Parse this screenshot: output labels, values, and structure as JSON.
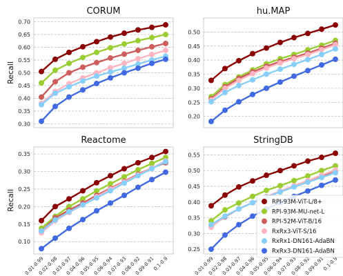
{
  "figure": {
    "xlabels": [
      "0.01-0.99",
      "0.02-0.98",
      "0.03-0.97",
      "0.04-0.96",
      "0.05-0.95",
      "0.06-0.94",
      "0.07-0.93",
      "0.08-0.92",
      "0.09-0.91",
      "0.1-0.9"
    ],
    "ylabel": "Recall"
  },
  "legend": {
    "placement": "bottom-right of StringDB panel",
    "entries": [
      {
        "name": "RPI-93M-ViT-L/8+",
        "color": "#8b0000"
      },
      {
        "name": "RPI-93M-MU-net-L",
        "color": "#9acd32"
      },
      {
        "name": "RPI-52M-ViT-B/16",
        "color": "#cd5c5c"
      },
      {
        "name": "RxRx3-ViT-S/16",
        "color": "#ffb6c1"
      },
      {
        "name": "RxRx1-DN161-AdaBN",
        "color": "#87cefa"
      },
      {
        "name": "RxRx3-DN161-AdaBN",
        "color": "#4169e1"
      }
    ]
  },
  "chart_data": [
    {
      "type": "line",
      "title": "CORUM",
      "xlabel": "",
      "ylabel": "Recall",
      "ylim": [
        0.285,
        0.715
      ],
      "yticks": [
        "0.30",
        "0.35",
        "0.40",
        "0.45",
        "0.50",
        "0.55",
        "0.60",
        "0.65",
        "0.70"
      ],
      "grid": true,
      "series": [
        {
          "name": "RPI-93M-ViT-L/8+",
          "values": [
            0.505,
            0.553,
            0.58,
            0.602,
            0.622,
            0.64,
            0.655,
            0.668,
            0.678,
            0.688
          ]
        },
        {
          "name": "RPI-93M-MU-net-L",
          "values": [
            0.46,
            0.51,
            0.537,
            0.56,
            0.58,
            0.598,
            0.613,
            0.626,
            0.638,
            0.65
          ]
        },
        {
          "name": "RPI-52M-ViT-B/16",
          "values": [
            0.405,
            0.465,
            0.5,
            0.522,
            0.54,
            0.558,
            0.573,
            0.588,
            0.602,
            0.615
          ]
        },
        {
          "name": "RxRx3-ViT-S/16",
          "values": [
            0.38,
            0.427,
            0.457,
            0.48,
            0.5,
            0.52,
            0.537,
            0.555,
            0.572,
            0.588
          ]
        },
        {
          "name": "RxRx1-DN161-AdaBN",
          "values": [
            0.375,
            0.42,
            0.445,
            0.468,
            0.487,
            0.503,
            0.518,
            0.534,
            0.55,
            0.565
          ]
        },
        {
          "name": "RxRx3-DN161-AdaBN",
          "values": [
            0.31,
            0.368,
            0.405,
            0.433,
            0.458,
            0.48,
            0.5,
            0.518,
            0.537,
            0.553
          ]
        }
      ]
    },
    {
      "type": "line",
      "title": "hu.MAP",
      "xlabel": "",
      "ylabel": "",
      "ylim": [
        0.16,
        0.55
      ],
      "yticks": [
        "0.20",
        "0.25",
        "0.30",
        "0.35",
        "0.40",
        "0.45",
        "0.50"
      ],
      "grid": true,
      "series": [
        {
          "name": "RPI-93M-ViT-L/8+",
          "values": [
            0.328,
            0.37,
            0.398,
            0.423,
            0.443,
            0.463,
            0.48,
            0.495,
            0.51,
            0.525
          ]
        },
        {
          "name": "RPI-93M-MU-net-L",
          "values": [
            0.27,
            0.313,
            0.34,
            0.365,
            0.387,
            0.405,
            0.42,
            0.437,
            0.453,
            0.47
          ]
        },
        {
          "name": "RPI-52M-ViT-B/16",
          "values": [
            0.262,
            0.305,
            0.335,
            0.358,
            0.378,
            0.395,
            0.41,
            0.425,
            0.442,
            0.46
          ]
        },
        {
          "name": "RxRx3-ViT-S/16",
          "values": [
            0.258,
            0.3,
            0.328,
            0.352,
            0.372,
            0.39,
            0.405,
            0.42,
            0.437,
            0.455
          ]
        },
        {
          "name": "RxRx1-DN161-AdaBN",
          "values": [
            0.252,
            0.285,
            0.31,
            0.33,
            0.35,
            0.368,
            0.385,
            0.402,
            0.42,
            0.44
          ]
        },
        {
          "name": "RxRx3-DN161-AdaBN",
          "values": [
            0.182,
            0.222,
            0.252,
            0.278,
            0.3,
            0.322,
            0.343,
            0.363,
            0.383,
            0.403
          ]
        }
      ]
    },
    {
      "type": "line",
      "title": "Reactome",
      "xlabel": "",
      "ylabel": "Recall",
      "ylim": [
        0.065,
        0.37
      ],
      "yticks": [
        "0.10",
        "0.15",
        "0.20",
        "0.25",
        "0.30",
        "0.35"
      ],
      "grid": true,
      "series": [
        {
          "name": "RPI-93M-ViT-L/8+",
          "values": [
            0.16,
            0.2,
            0.222,
            0.245,
            0.268,
            0.288,
            0.308,
            0.325,
            0.34,
            0.357
          ]
        },
        {
          "name": "RPI-93M-MU-net-L",
          "values": [
            0.138,
            0.172,
            0.2,
            0.222,
            0.245,
            0.265,
            0.285,
            0.305,
            0.323,
            0.34
          ]
        },
        {
          "name": "RPI-52M-ViT-B/16",
          "values": [
            0.13,
            0.168,
            0.19,
            0.21,
            0.232,
            0.252,
            0.272,
            0.292,
            0.31,
            0.325
          ]
        },
        {
          "name": "RxRx3-ViT-S/16",
          "values": [
            0.125,
            0.16,
            0.183,
            0.205,
            0.228,
            0.25,
            0.27,
            0.29,
            0.31,
            0.33
          ]
        },
        {
          "name": "RxRx1-DN161-AdaBN",
          "values": [
            0.13,
            0.162,
            0.185,
            0.205,
            0.225,
            0.245,
            0.267,
            0.288,
            0.308,
            0.328
          ]
        },
        {
          "name": "RxRx3-DN161-AdaBN",
          "values": [
            0.08,
            0.11,
            0.138,
            0.163,
            0.188,
            0.21,
            0.232,
            0.255,
            0.277,
            0.298
          ]
        }
      ]
    },
    {
      "type": "line",
      "title": "StringDB",
      "xlabel": "",
      "ylabel": "",
      "ylim": [
        0.235,
        0.575
      ],
      "yticks": [
        "0.25",
        "0.30",
        "0.35",
        "0.40",
        "0.45",
        "0.50",
        "0.55"
      ],
      "grid": true,
      "series": [
        {
          "name": "RPI-93M-ViT-L/8+",
          "values": [
            0.388,
            0.422,
            0.448,
            0.467,
            0.485,
            0.5,
            0.515,
            0.53,
            0.542,
            0.555
          ]
        },
        {
          "name": "RPI-93M-MU-net-L",
          "values": [
            0.34,
            0.375,
            0.397,
            0.418,
            0.437,
            0.452,
            0.468,
            0.483,
            0.5,
            0.515
          ]
        },
        {
          "name": "RPI-52M-ViT-B/16",
          "values": [
            0.323,
            0.353,
            0.378,
            0.398,
            0.417,
            0.433,
            0.45,
            0.465,
            0.482,
            0.5
          ]
        },
        {
          "name": "RxRx3-ViT-S/16",
          "values": [
            0.32,
            0.355,
            0.378,
            0.398,
            0.417,
            0.435,
            0.452,
            0.468,
            0.485,
            0.502
          ]
        },
        {
          "name": "RxRx1-DN161-AdaBN",
          "values": [
            0.328,
            0.355,
            0.378,
            0.398,
            0.415,
            0.432,
            0.448,
            0.463,
            0.478,
            0.493
          ]
        },
        {
          "name": "RxRx3-DN161-AdaBN",
          "values": [
            0.25,
            0.295,
            0.328,
            0.355,
            0.378,
            0.398,
            0.418,
            0.435,
            0.453,
            0.47
          ]
        }
      ]
    }
  ]
}
